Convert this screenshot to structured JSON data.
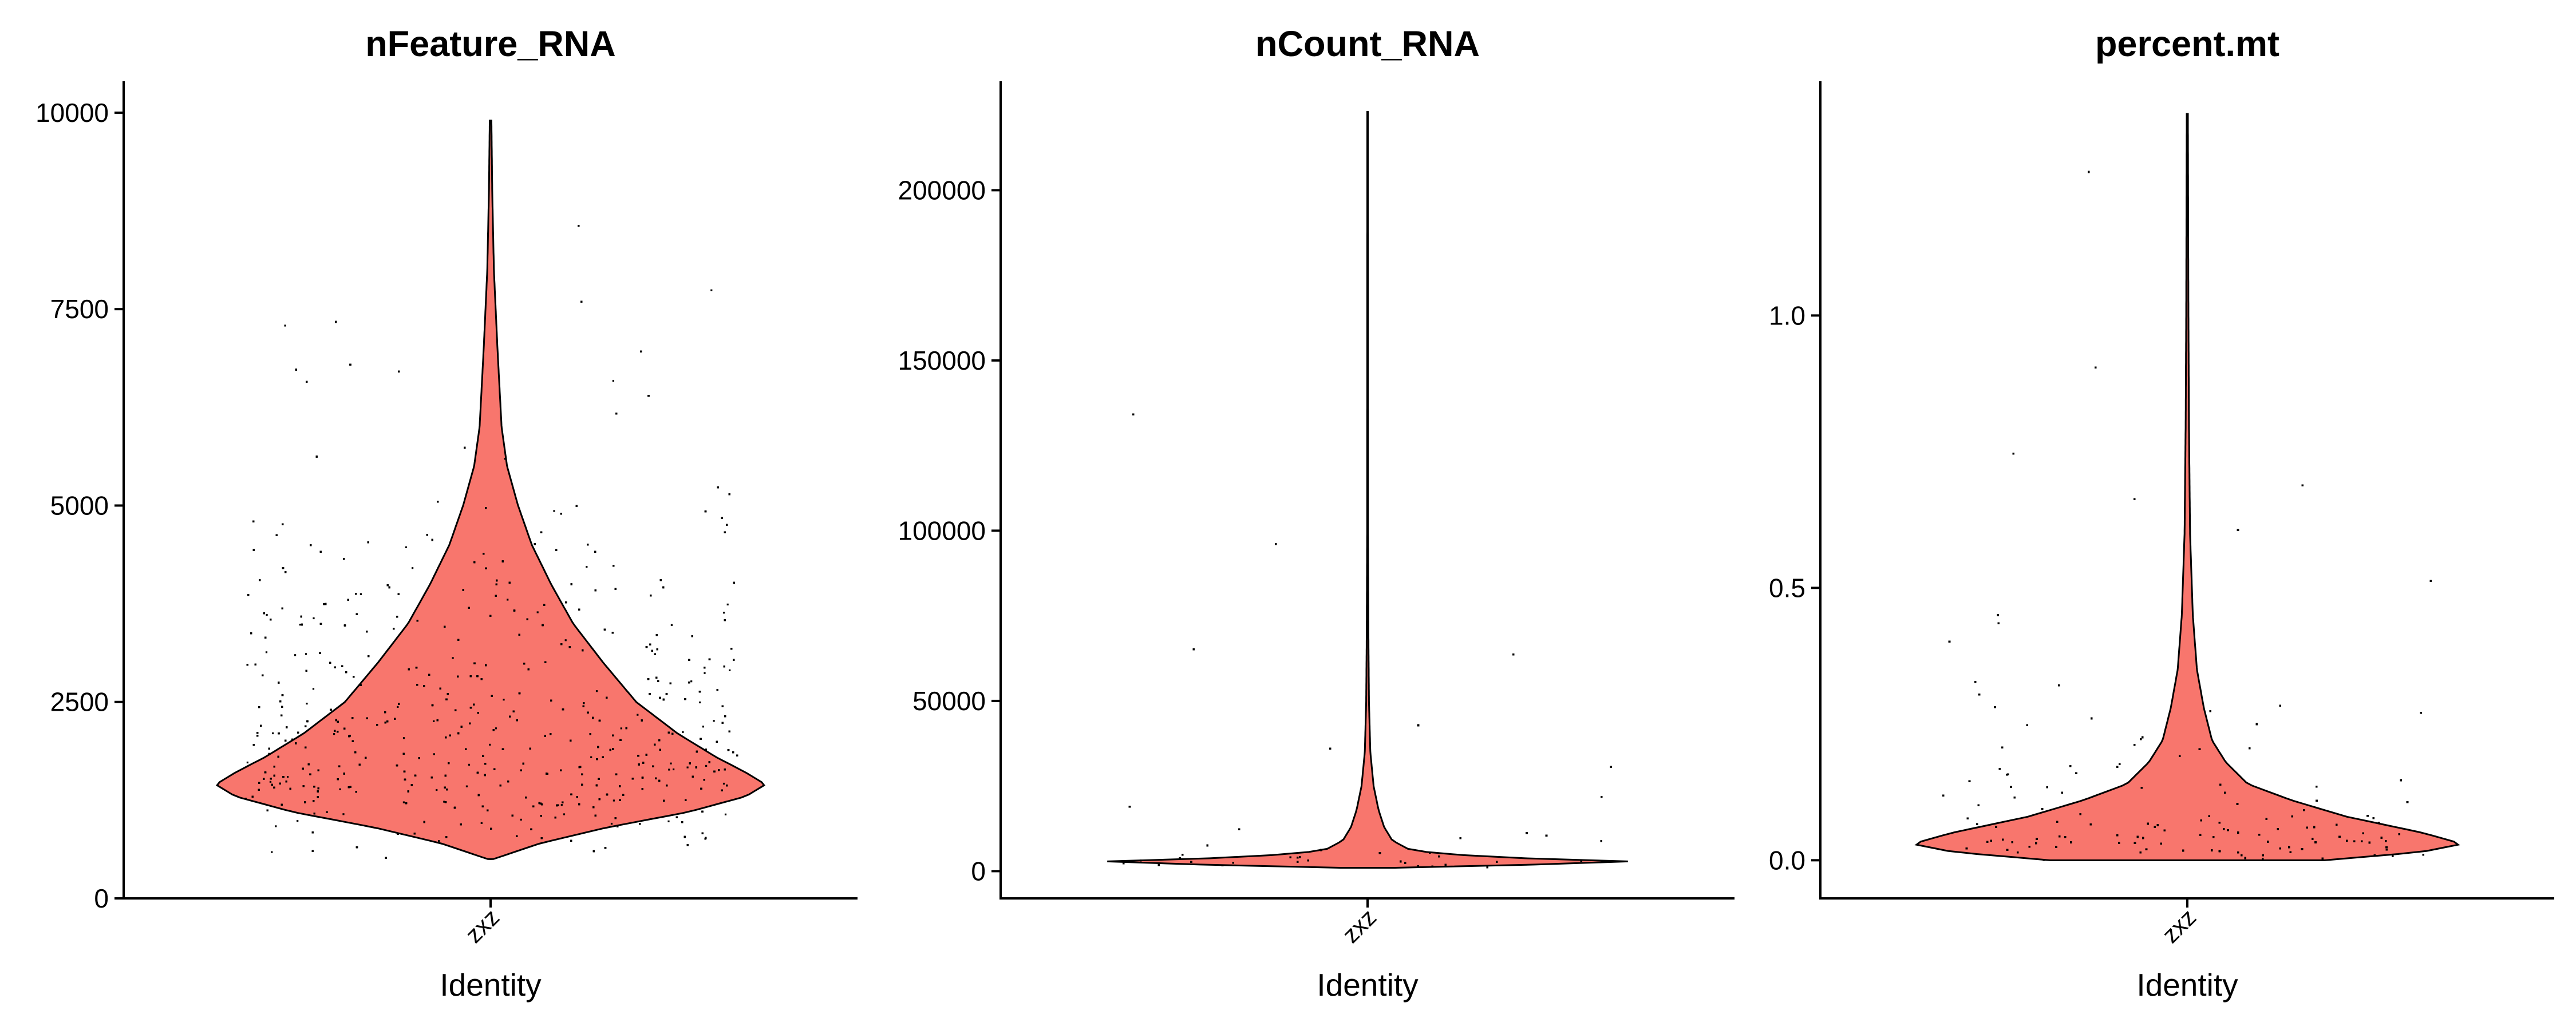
{
  "chart_data": [
    {
      "type": "violin",
      "title": "nFeature_RNA",
      "xlabel": "Identity",
      "ylabel": "",
      "categories": [
        "zxz"
      ],
      "ylim": [
        0,
        10400
      ],
      "yticks": [
        0,
        2500,
        5000,
        7500,
        10000
      ],
      "ytick_labels": [
        "0",
        "2500",
        "5000",
        "7500",
        "10000"
      ],
      "grid": false,
      "fill_color": "#F8766D",
      "point_color": "#000000",
      "distribution": {
        "min": 500,
        "max": 9900,
        "mode": 1400,
        "density_profile": [
          [
            500,
            0.01
          ],
          [
            700,
            0.18
          ],
          [
            900,
            0.42
          ],
          [
            1100,
            0.72
          ],
          [
            1300,
            0.93
          ],
          [
            1450,
            1.0
          ],
          [
            1600,
            0.93
          ],
          [
            1800,
            0.82
          ],
          [
            2100,
            0.68
          ],
          [
            2500,
            0.53
          ],
          [
            3000,
            0.41
          ],
          [
            3500,
            0.3
          ],
          [
            4000,
            0.22
          ],
          [
            4500,
            0.15
          ],
          [
            5000,
            0.1
          ],
          [
            5500,
            0.06
          ],
          [
            6000,
            0.04
          ],
          [
            7000,
            0.025
          ],
          [
            8000,
            0.012
          ],
          [
            9000,
            0.006
          ],
          [
            9900,
            0.003
          ]
        ]
      }
    },
    {
      "type": "violin",
      "title": "nCount_RNA",
      "xlabel": "Identity",
      "ylabel": "",
      "categories": [
        "zxz"
      ],
      "ylim": [
        -8000,
        232000
      ],
      "yticks": [
        0,
        50000,
        100000,
        150000,
        200000
      ],
      "ytick_labels": [
        "0",
        "50000",
        "100000",
        "150000",
        "200000"
      ],
      "grid": false,
      "fill_color": "#F8766D",
      "point_color": "#000000",
      "distribution": {
        "min": 1000,
        "max": 223000,
        "mode": 3000,
        "density_profile": [
          [
            1000,
            0.1
          ],
          [
            2000,
            0.65
          ],
          [
            3000,
            1.0
          ],
          [
            4000,
            0.45
          ],
          [
            6000,
            0.16
          ],
          [
            9000,
            0.09
          ],
          [
            13000,
            0.06
          ],
          [
            18000,
            0.04
          ],
          [
            25000,
            0.022
          ],
          [
            35000,
            0.01
          ],
          [
            50000,
            0.005
          ],
          [
            70000,
            0.003
          ],
          [
            100000,
            0.0015
          ],
          [
            223000,
            0.001
          ]
        ]
      }
    },
    {
      "type": "violin",
      "title": "percent.mt",
      "xlabel": "Identity",
      "ylabel": "",
      "categories": [
        "zxz"
      ],
      "ylim": [
        -0.07,
        1.43
      ],
      "yticks": [
        0.0,
        0.5,
        1.0
      ],
      "ytick_labels": [
        "0.0",
        "0.5",
        "1.0"
      ],
      "grid": false,
      "fill_color": "#F8766D",
      "point_color": "#000000",
      "distribution": {
        "min": 0.0,
        "max": 1.37,
        "mode": 0.03,
        "density_profile": [
          [
            0.0,
            0.5
          ],
          [
            0.015,
            0.85
          ],
          [
            0.03,
            1.0
          ],
          [
            0.05,
            0.86
          ],
          [
            0.08,
            0.58
          ],
          [
            0.11,
            0.38
          ],
          [
            0.14,
            0.22
          ],
          [
            0.18,
            0.14
          ],
          [
            0.22,
            0.09
          ],
          [
            0.28,
            0.06
          ],
          [
            0.35,
            0.035
          ],
          [
            0.45,
            0.02
          ],
          [
            0.6,
            0.01
          ],
          [
            0.8,
            0.006
          ],
          [
            1.0,
            0.004
          ],
          [
            1.37,
            0.002
          ]
        ]
      }
    }
  ]
}
